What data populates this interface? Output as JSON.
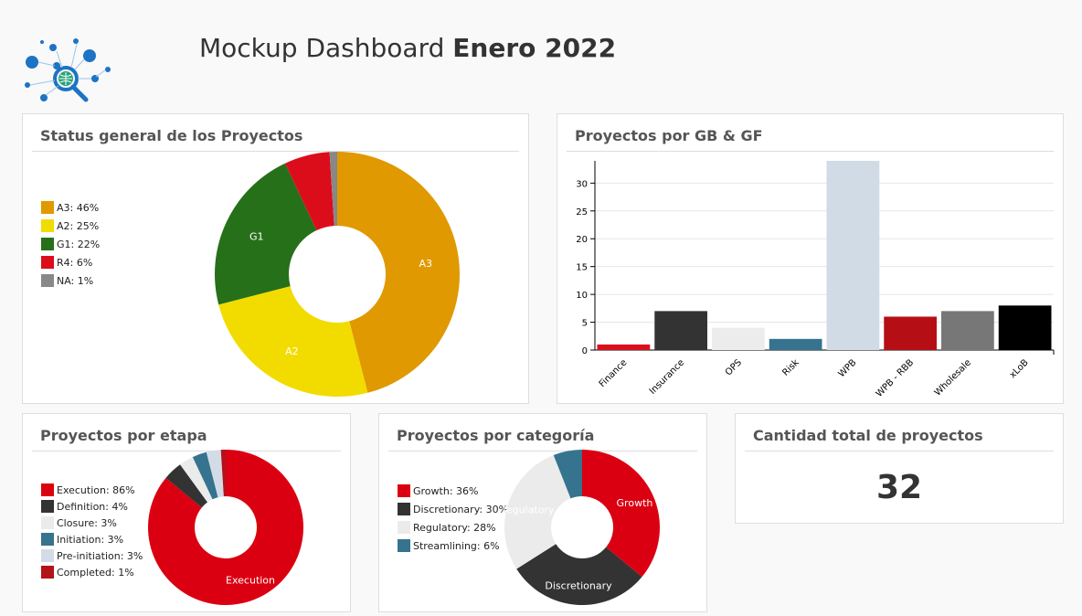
{
  "header": {
    "title_light": "Mockup Dashboard",
    "title_bold": "Enero 2022"
  },
  "panels": {
    "status": {
      "title": "Status general de los Proyectos"
    },
    "gb": {
      "title": "Proyectos por GB & GF"
    },
    "etapa": {
      "title": "Proyectos por etapa"
    },
    "categoria": {
      "title": "Proyectos por categoría"
    },
    "total": {
      "title": "Cantidad total de proyectos",
      "value": "32"
    }
  },
  "chart_data": [
    {
      "id": "status",
      "type": "pie",
      "title": "Status general de los Proyectos",
      "categories": [
        "A3",
        "A2",
        "G1",
        "R4",
        "NA"
      ],
      "values": [
        46,
        25,
        22,
        6,
        1
      ],
      "legend": [
        "A3: 46%",
        "A2: 25%",
        "G1: 22%",
        "R4: 6%",
        "NA: 1%"
      ],
      "slice_labels": [
        "A3",
        "A2",
        "G1",
        "",
        ""
      ],
      "colors": [
        "#e09900",
        "#f2dc00",
        "#267019",
        "#dc0d1a",
        "#888888"
      ],
      "legend_placement": "left"
    },
    {
      "id": "gb",
      "type": "bar",
      "title": "Proyectos por GB & GF",
      "categories": [
        "Finance",
        "Insurance",
        "OPS",
        "Risk",
        "WPB",
        "WPB - RBB",
        "Wholesale",
        "xLoB"
      ],
      "values": [
        1,
        7,
        4,
        2,
        34,
        6,
        7,
        8
      ],
      "colors": [
        "#d8101e",
        "#333333",
        "#ececec",
        "#35738f",
        "#d0dbe5",
        "#b50f15",
        "#777777",
        "#000000"
      ],
      "yticks": [
        0,
        5,
        10,
        15,
        20,
        25,
        30
      ],
      "ylim": [
        0,
        34
      ],
      "grid": true
    },
    {
      "id": "etapa",
      "type": "pie",
      "title": "Proyectos por etapa",
      "categories": [
        "Execution",
        "Definition",
        "Closure",
        "Initiation",
        "Pre-initiation",
        "Completed"
      ],
      "values": [
        86,
        4,
        3,
        3,
        3,
        1
      ],
      "legend": [
        "Execution: 86%",
        "Definition: 4%",
        "Closure: 3%",
        "Initiation: 3%",
        "Pre-initiation: 3%",
        "Completed: 1%"
      ],
      "slice_labels": [
        "Execution",
        "",
        "",
        "",
        "",
        ""
      ],
      "colors": [
        "#db0011",
        "#333333",
        "#ebebeb",
        "#35738f",
        "#d3dce6",
        "#b3121b"
      ],
      "legend_placement": "left"
    },
    {
      "id": "categoria",
      "type": "pie",
      "title": "Proyectos por categoría",
      "categories": [
        "Growth",
        "Discretionary",
        "Regulatory",
        "Streamlining"
      ],
      "values": [
        36,
        30,
        28,
        6
      ],
      "legend": [
        "Growth: 36%",
        "Discretionary: 30%",
        "Regulatory: 28%",
        "Streamlining: 6%"
      ],
      "slice_labels": [
        "Growth",
        "Discretionary",
        "Regulatory",
        ""
      ],
      "colors": [
        "#db0011",
        "#333333",
        "#ebebeb",
        "#35738f"
      ],
      "legend_placement": "left"
    }
  ]
}
